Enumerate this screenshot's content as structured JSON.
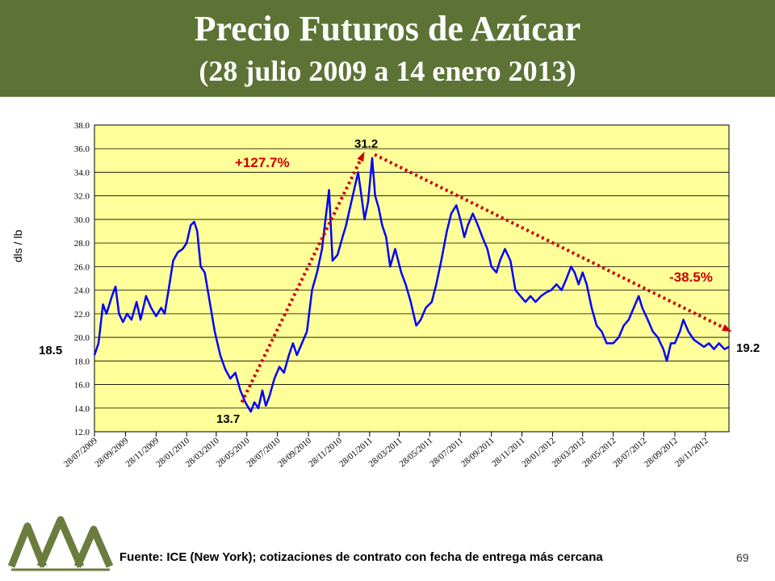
{
  "header": {
    "title": "Precio Futuros de Azúcar",
    "subtitle": "(28 julio 2009 a 14 enero 2013)"
  },
  "footer": {
    "source": "Fuente: ICE (New York); cotizaciones de contrato con fecha de entrega más cercana",
    "page_number": "69"
  },
  "colors": {
    "banner": "#5d7336",
    "plot_background": "#ffff99",
    "series_line": "#0000ff",
    "trend_line": "#cc0000",
    "logo": "#6b7d3e"
  },
  "chart_data": {
    "type": "line",
    "title": "",
    "xlabel": "",
    "ylabel": "dls / lb",
    "ylim": [
      12.0,
      38.0
    ],
    "grid": "horizontal",
    "y_ticks": [
      "12.0",
      "14.0",
      "16.0",
      "18.0",
      "20.0",
      "22.0",
      "24.0",
      "26.0",
      "28.0",
      "30.0",
      "32.0",
      "34.0",
      "36.0",
      "38.0"
    ],
    "x_ticks": [
      "28/07/2009",
      "28/09/2009",
      "28/11/2009",
      "28/01/2010",
      "28/03/2010",
      "28/05/2010",
      "28/07/2010",
      "28/09/2010",
      "28/11/2010",
      "28/01/2011",
      "28/03/2011",
      "28/05/2011",
      "28/07/2011",
      "28/09/2011",
      "28/11/2011",
      "28/01/2012",
      "28/03/2012",
      "28/05/2012",
      "28/07/2012",
      "28/09/2012",
      "28/11/2012"
    ],
    "x_range": [
      "28/07/2009",
      "14/01/2013"
    ],
    "series": [
      {
        "color": "#0000ff",
        "points": [
          [
            "28/07/2009",
            18.5
          ],
          [
            "05/08/2009",
            19.5
          ],
          [
            "14/08/2009",
            22.8
          ],
          [
            "21/08/2009",
            22.0
          ],
          [
            "01/09/2009",
            23.5
          ],
          [
            "08/09/2009",
            24.3
          ],
          [
            "15/09/2009",
            22.0
          ],
          [
            "23/09/2009",
            21.3
          ],
          [
            "01/10/2009",
            22.0
          ],
          [
            "10/10/2009",
            21.5
          ],
          [
            "20/10/2009",
            23.0
          ],
          [
            "28/10/2009",
            21.5
          ],
          [
            "08/11/2009",
            23.5
          ],
          [
            "18/11/2009",
            22.5
          ],
          [
            "28/11/2009",
            21.8
          ],
          [
            "08/12/2009",
            22.5
          ],
          [
            "15/12/2009",
            22.0
          ],
          [
            "22/12/2009",
            23.8
          ],
          [
            "01/01/2010",
            26.5
          ],
          [
            "10/01/2010",
            27.2
          ],
          [
            "20/01/2010",
            27.5
          ],
          [
            "28/01/2010",
            28.0
          ],
          [
            "05/02/2010",
            29.5
          ],
          [
            "12/02/2010",
            29.8
          ],
          [
            "18/02/2010",
            29.0
          ],
          [
            "25/02/2010",
            26.0
          ],
          [
            "05/03/2010",
            25.5
          ],
          [
            "15/03/2010",
            23.0
          ],
          [
            "25/03/2010",
            20.5
          ],
          [
            "05/04/2010",
            18.5
          ],
          [
            "15/04/2010",
            17.3
          ],
          [
            "25/04/2010",
            16.5
          ],
          [
            "05/05/2010",
            17.0
          ],
          [
            "15/05/2010",
            15.5
          ],
          [
            "25/05/2010",
            14.5
          ],
          [
            "05/06/2010",
            13.7
          ],
          [
            "12/06/2010",
            14.5
          ],
          [
            "20/06/2010",
            14.0
          ],
          [
            "28/06/2010",
            15.5
          ],
          [
            "05/07/2010",
            14.2
          ],
          [
            "12/07/2010",
            15.0
          ],
          [
            "22/07/2010",
            16.5
          ],
          [
            "01/08/2010",
            17.5
          ],
          [
            "10/08/2010",
            17.0
          ],
          [
            "20/08/2010",
            18.5
          ],
          [
            "28/08/2010",
            19.5
          ],
          [
            "05/09/2010",
            18.5
          ],
          [
            "15/09/2010",
            19.5
          ],
          [
            "25/09/2010",
            20.5
          ],
          [
            "05/10/2010",
            24.0
          ],
          [
            "15/10/2010",
            25.5
          ],
          [
            "25/10/2010",
            27.5
          ],
          [
            "01/11/2010",
            30.0
          ],
          [
            "08/11/2010",
            32.5
          ],
          [
            "15/11/2010",
            26.5
          ],
          [
            "25/11/2010",
            27.0
          ],
          [
            "05/12/2010",
            28.5
          ],
          [
            "12/12/2010",
            29.5
          ],
          [
            "20/12/2010",
            31.0
          ],
          [
            "28/12/2010",
            32.5
          ],
          [
            "05/01/2011",
            34.0
          ],
          [
            "10/01/2011",
            32.5
          ],
          [
            "18/01/2011",
            30.0
          ],
          [
            "25/01/2011",
            31.5
          ],
          [
            "02/02/2011",
            35.2
          ],
          [
            "08/02/2011",
            32.0
          ],
          [
            "15/02/2011",
            31.0
          ],
          [
            "22/02/2011",
            29.5
          ],
          [
            "02/03/2011",
            28.5
          ],
          [
            "10/03/2011",
            26.0
          ],
          [
            "20/03/2011",
            27.5
          ],
          [
            "01/04/2011",
            25.5
          ],
          [
            "10/04/2011",
            24.5
          ],
          [
            "20/04/2011",
            23.0
          ],
          [
            "01/05/2011",
            21.0
          ],
          [
            "10/05/2011",
            21.5
          ],
          [
            "20/05/2011",
            22.5
          ],
          [
            "01/06/2011",
            23.0
          ],
          [
            "10/06/2011",
            24.5
          ],
          [
            "20/06/2011",
            26.5
          ],
          [
            "01/07/2011",
            29.0
          ],
          [
            "10/07/2011",
            30.5
          ],
          [
            "20/07/2011",
            31.2
          ],
          [
            "28/07/2011",
            30.0
          ],
          [
            "05/08/2011",
            28.5
          ],
          [
            "12/08/2011",
            29.5
          ],
          [
            "22/08/2011",
            30.5
          ],
          [
            "01/09/2011",
            29.5
          ],
          [
            "10/09/2011",
            28.5
          ],
          [
            "20/09/2011",
            27.5
          ],
          [
            "28/09/2011",
            26.0
          ],
          [
            "08/10/2011",
            25.5
          ],
          [
            "15/10/2011",
            26.5
          ],
          [
            "25/10/2011",
            27.5
          ],
          [
            "05/11/2011",
            26.5
          ],
          [
            "15/11/2011",
            24.0
          ],
          [
            "25/11/2011",
            23.5
          ],
          [
            "05/12/2011",
            23.0
          ],
          [
            "15/12/2011",
            23.5
          ],
          [
            "25/12/2011",
            23.0
          ],
          [
            "05/01/2012",
            23.5
          ],
          [
            "15/01/2012",
            23.8
          ],
          [
            "25/01/2012",
            24.0
          ],
          [
            "05/02/2012",
            24.5
          ],
          [
            "15/02/2012",
            24.0
          ],
          [
            "25/02/2012",
            25.0
          ],
          [
            "05/03/2012",
            26.0
          ],
          [
            "12/03/2012",
            25.5
          ],
          [
            "20/03/2012",
            24.5
          ],
          [
            "28/03/2012",
            25.5
          ],
          [
            "05/04/2012",
            24.5
          ],
          [
            "15/04/2012",
            22.5
          ],
          [
            "25/04/2012",
            21.0
          ],
          [
            "05/05/2012",
            20.5
          ],
          [
            "15/05/2012",
            19.5
          ],
          [
            "28/05/2012",
            19.5
          ],
          [
            "08/06/2012",
            20.0
          ],
          [
            "18/06/2012",
            21.0
          ],
          [
            "28/06/2012",
            21.5
          ],
          [
            "08/07/2012",
            22.5
          ],
          [
            "18/07/2012",
            23.5
          ],
          [
            "25/07/2012",
            22.5
          ],
          [
            "05/08/2012",
            21.5
          ],
          [
            "15/08/2012",
            20.5
          ],
          [
            "25/08/2012",
            20.0
          ],
          [
            "05/09/2012",
            19.0
          ],
          [
            "12/09/2012",
            18.0
          ],
          [
            "20/09/2012",
            19.5
          ],
          [
            "28/09/2012",
            19.5
          ],
          [
            "08/10/2012",
            20.5
          ],
          [
            "15/10/2012",
            21.5
          ],
          [
            "25/10/2012",
            20.5
          ],
          [
            "05/11/2012",
            19.8
          ],
          [
            "15/11/2012",
            19.5
          ],
          [
            "25/11/2012",
            19.2
          ],
          [
            "05/12/2012",
            19.5
          ],
          [
            "15/12/2012",
            19.0
          ],
          [
            "25/12/2012",
            19.5
          ],
          [
            "05/01/2013",
            19.0
          ],
          [
            "14/01/2013",
            19.2
          ]
        ]
      }
    ],
    "trend_lines": [
      {
        "from": [
          "18/05/2010",
          14.5
        ],
        "to": [
          "15/01/2011",
          35.5
        ],
        "label": "+127.7%"
      },
      {
        "from": [
          "07/02/2011",
          35.5
        ],
        "to": [
          "14/01/2013",
          20.6
        ],
        "label": "-38.5%"
      }
    ],
    "annotations": [
      {
        "text": "18.5",
        "color": "#000000"
      },
      {
        "text": "13.7",
        "color": "#000000"
      },
      {
        "text": "31.2",
        "color": "#000000"
      },
      {
        "text": "19.2",
        "color": "#000000"
      },
      {
        "text": "+127.7%",
        "color": "#cc0000"
      },
      {
        "text": "-38.5%",
        "color": "#cc0000"
      }
    ]
  }
}
